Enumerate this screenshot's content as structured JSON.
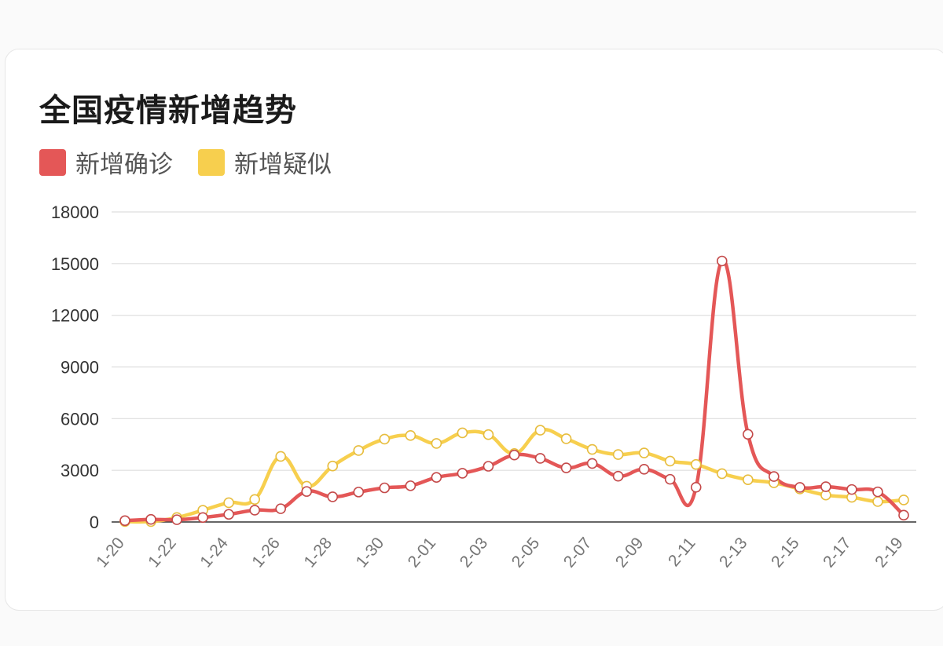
{
  "title": "全国疫情新增趋势",
  "legend": [
    {
      "label": "新增确诊",
      "color": "#e45757"
    },
    {
      "label": "新增疑似",
      "color": "#f7cf4e"
    }
  ],
  "chart_data": {
    "type": "line",
    "title": "全国疫情新增趋势",
    "xlabel": "",
    "ylabel": "",
    "ylim": [
      0,
      18000
    ],
    "yticks": [
      0,
      3000,
      6000,
      9000,
      12000,
      15000,
      18000
    ],
    "x": [
      "1-20",
      "1-21",
      "1-22",
      "1-23",
      "1-24",
      "1-25",
      "1-26",
      "1-27",
      "1-28",
      "1-29",
      "1-30",
      "1-31",
      "2-01",
      "2-02",
      "2-03",
      "2-04",
      "2-05",
      "2-06",
      "2-07",
      "2-08",
      "2-09",
      "2-10",
      "2-11",
      "2-12",
      "2-13",
      "2-14",
      "2-15",
      "2-16",
      "2-17",
      "2-18",
      "2-19"
    ],
    "xtick_labels": [
      "1-20",
      "1-22",
      "1-24",
      "1-26",
      "1-28",
      "1-30",
      "2-01",
      "2-03",
      "2-05",
      "2-07",
      "2-09",
      "2-11",
      "2-13",
      "2-15",
      "2-17",
      "2-19"
    ],
    "grid": true,
    "legend_position": "top-left",
    "series": [
      {
        "name": "新增确诊",
        "color": "#e45757",
        "values": [
          77,
          149,
          131,
          259,
          444,
          688,
          769,
          1771,
          1459,
          1737,
          1982,
          2102,
          2590,
          2829,
          3235,
          3887,
          3694,
          3143,
          3399,
          2656,
          3062,
          2478,
          2015,
          15152,
          5090,
          2641,
          2009,
          2048,
          1886,
          1749,
          394
        ]
      },
      {
        "name": "新增疑似",
        "color": "#f7cf4e",
        "values": [
          27,
          26,
          257,
          680,
          1118,
          1309,
          3806,
          2077,
          3248,
          4148,
          4812,
          5019,
          4562,
          5173,
          5072,
          3971,
          5328,
          4833,
          4214,
          3916,
          4008,
          3536,
          3342,
          2807,
          2450,
          2277,
          1918,
          1563,
          1432,
          1185,
          1277
        ]
      }
    ]
  }
}
